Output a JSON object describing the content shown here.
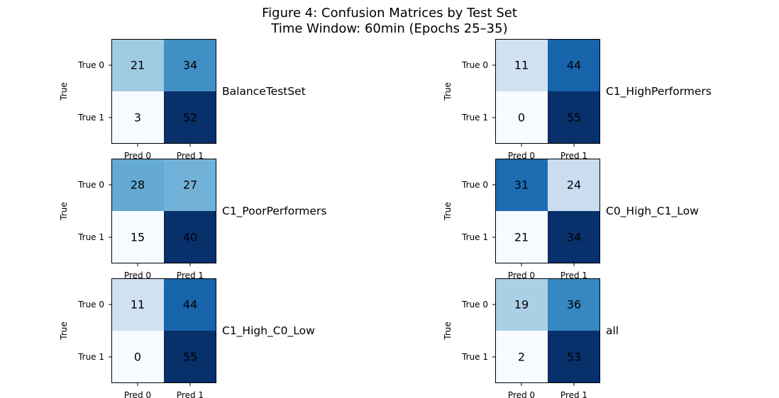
{
  "figure": {
    "title_line1": "Figure 4: Confusion Matrices by Test Set",
    "title_line2": "Time Window: 60min (Epochs 25–35)"
  },
  "colormap": "Blues",
  "text_color": "#000000",
  "chart_data": [
    {
      "type": "heatmap",
      "name": "BalanceTestSet",
      "xlabel": "",
      "ylabel": "True",
      "x_ticks": [
        "Pred 0",
        "Pred 1"
      ],
      "y_ticks": [
        "True 0",
        "True 1"
      ],
      "values": [
        [
          21,
          34
        ],
        [
          3,
          52
        ]
      ]
    },
    {
      "type": "heatmap",
      "name": "C1_HighPerformers",
      "xlabel": "",
      "ylabel": "True",
      "x_ticks": [
        "Pred 0",
        "Pred 1"
      ],
      "y_ticks": [
        "True 0",
        "True 1"
      ],
      "values": [
        [
          11,
          44
        ],
        [
          0,
          55
        ]
      ]
    },
    {
      "type": "heatmap",
      "name": "C1_PoorPerformers",
      "xlabel": "",
      "ylabel": "True",
      "x_ticks": [
        "Pred 0",
        "Pred 1"
      ],
      "y_ticks": [
        "True 0",
        "True 1"
      ],
      "values": [
        [
          28,
          27
        ],
        [
          15,
          40
        ]
      ]
    },
    {
      "type": "heatmap",
      "name": "C0_High_C1_Low",
      "xlabel": "",
      "ylabel": "True",
      "x_ticks": [
        "Pred 0",
        "Pred 1"
      ],
      "y_ticks": [
        "True 0",
        "True 1"
      ],
      "values": [
        [
          31,
          24
        ],
        [
          21,
          34
        ]
      ]
    },
    {
      "type": "heatmap",
      "name": "C1_High_C0_Low",
      "xlabel": "",
      "ylabel": "True",
      "x_ticks": [
        "Pred 0",
        "Pred 1"
      ],
      "y_ticks": [
        "True 0",
        "True 1"
      ],
      "values": [
        [
          11,
          44
        ],
        [
          0,
          55
        ]
      ]
    },
    {
      "type": "heatmap",
      "name": "all",
      "xlabel": "",
      "ylabel": "True",
      "x_ticks": [
        "Pred 0",
        "Pred 1"
      ],
      "y_ticks": [
        "True 0",
        "True 1"
      ],
      "values": [
        [
          19,
          36
        ],
        [
          2,
          53
        ]
      ]
    }
  ]
}
